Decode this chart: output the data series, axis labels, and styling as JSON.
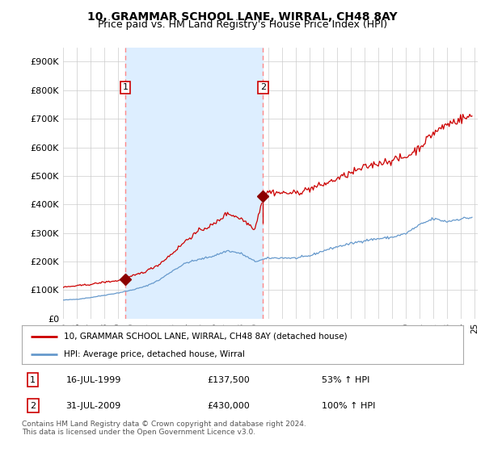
{
  "title": "10, GRAMMAR SCHOOL LANE, WIRRAL, CH48 8AY",
  "subtitle": "Price paid vs. HM Land Registry's House Price Index (HPI)",
  "title_fontsize": 10,
  "subtitle_fontsize": 9,
  "ylabel_ticks": [
    "£0",
    "£100K",
    "£200K",
    "£300K",
    "£400K",
    "£500K",
    "£600K",
    "£700K",
    "£800K",
    "£900K"
  ],
  "ytick_values": [
    0,
    100000,
    200000,
    300000,
    400000,
    500000,
    600000,
    700000,
    800000,
    900000
  ],
  "ylim": [
    0,
    950000
  ],
  "xlim_start": 1995.0,
  "xlim_end": 2025.25,
  "background_color": "#ffffff",
  "grid_color": "#cccccc",
  "shade_color": "#ddeeff",
  "sale1_date": 1999.54,
  "sale1_price": 137500,
  "sale1_label": "1",
  "sale2_date": 2009.58,
  "sale2_price": 430000,
  "sale2_label": "2",
  "vline_color": "#ff8888",
  "legend_house_label": "10, GRAMMAR SCHOOL LANE, WIRRAL, CH48 8AY (detached house)",
  "legend_hpi_label": "HPI: Average price, detached house, Wirral",
  "house_line_color": "#cc0000",
  "hpi_line_color": "#6699cc",
  "marker_color": "#8b0000",
  "annotation1_date": "16-JUL-1999",
  "annotation1_price": "£137,500",
  "annotation1_hpi": "53% ↑ HPI",
  "annotation2_date": "31-JUL-2009",
  "annotation2_price": "£430,000",
  "annotation2_hpi": "100% ↑ HPI",
  "footer": "Contains HM Land Registry data © Crown copyright and database right 2024.\nThis data is licensed under the Open Government Licence v3.0."
}
